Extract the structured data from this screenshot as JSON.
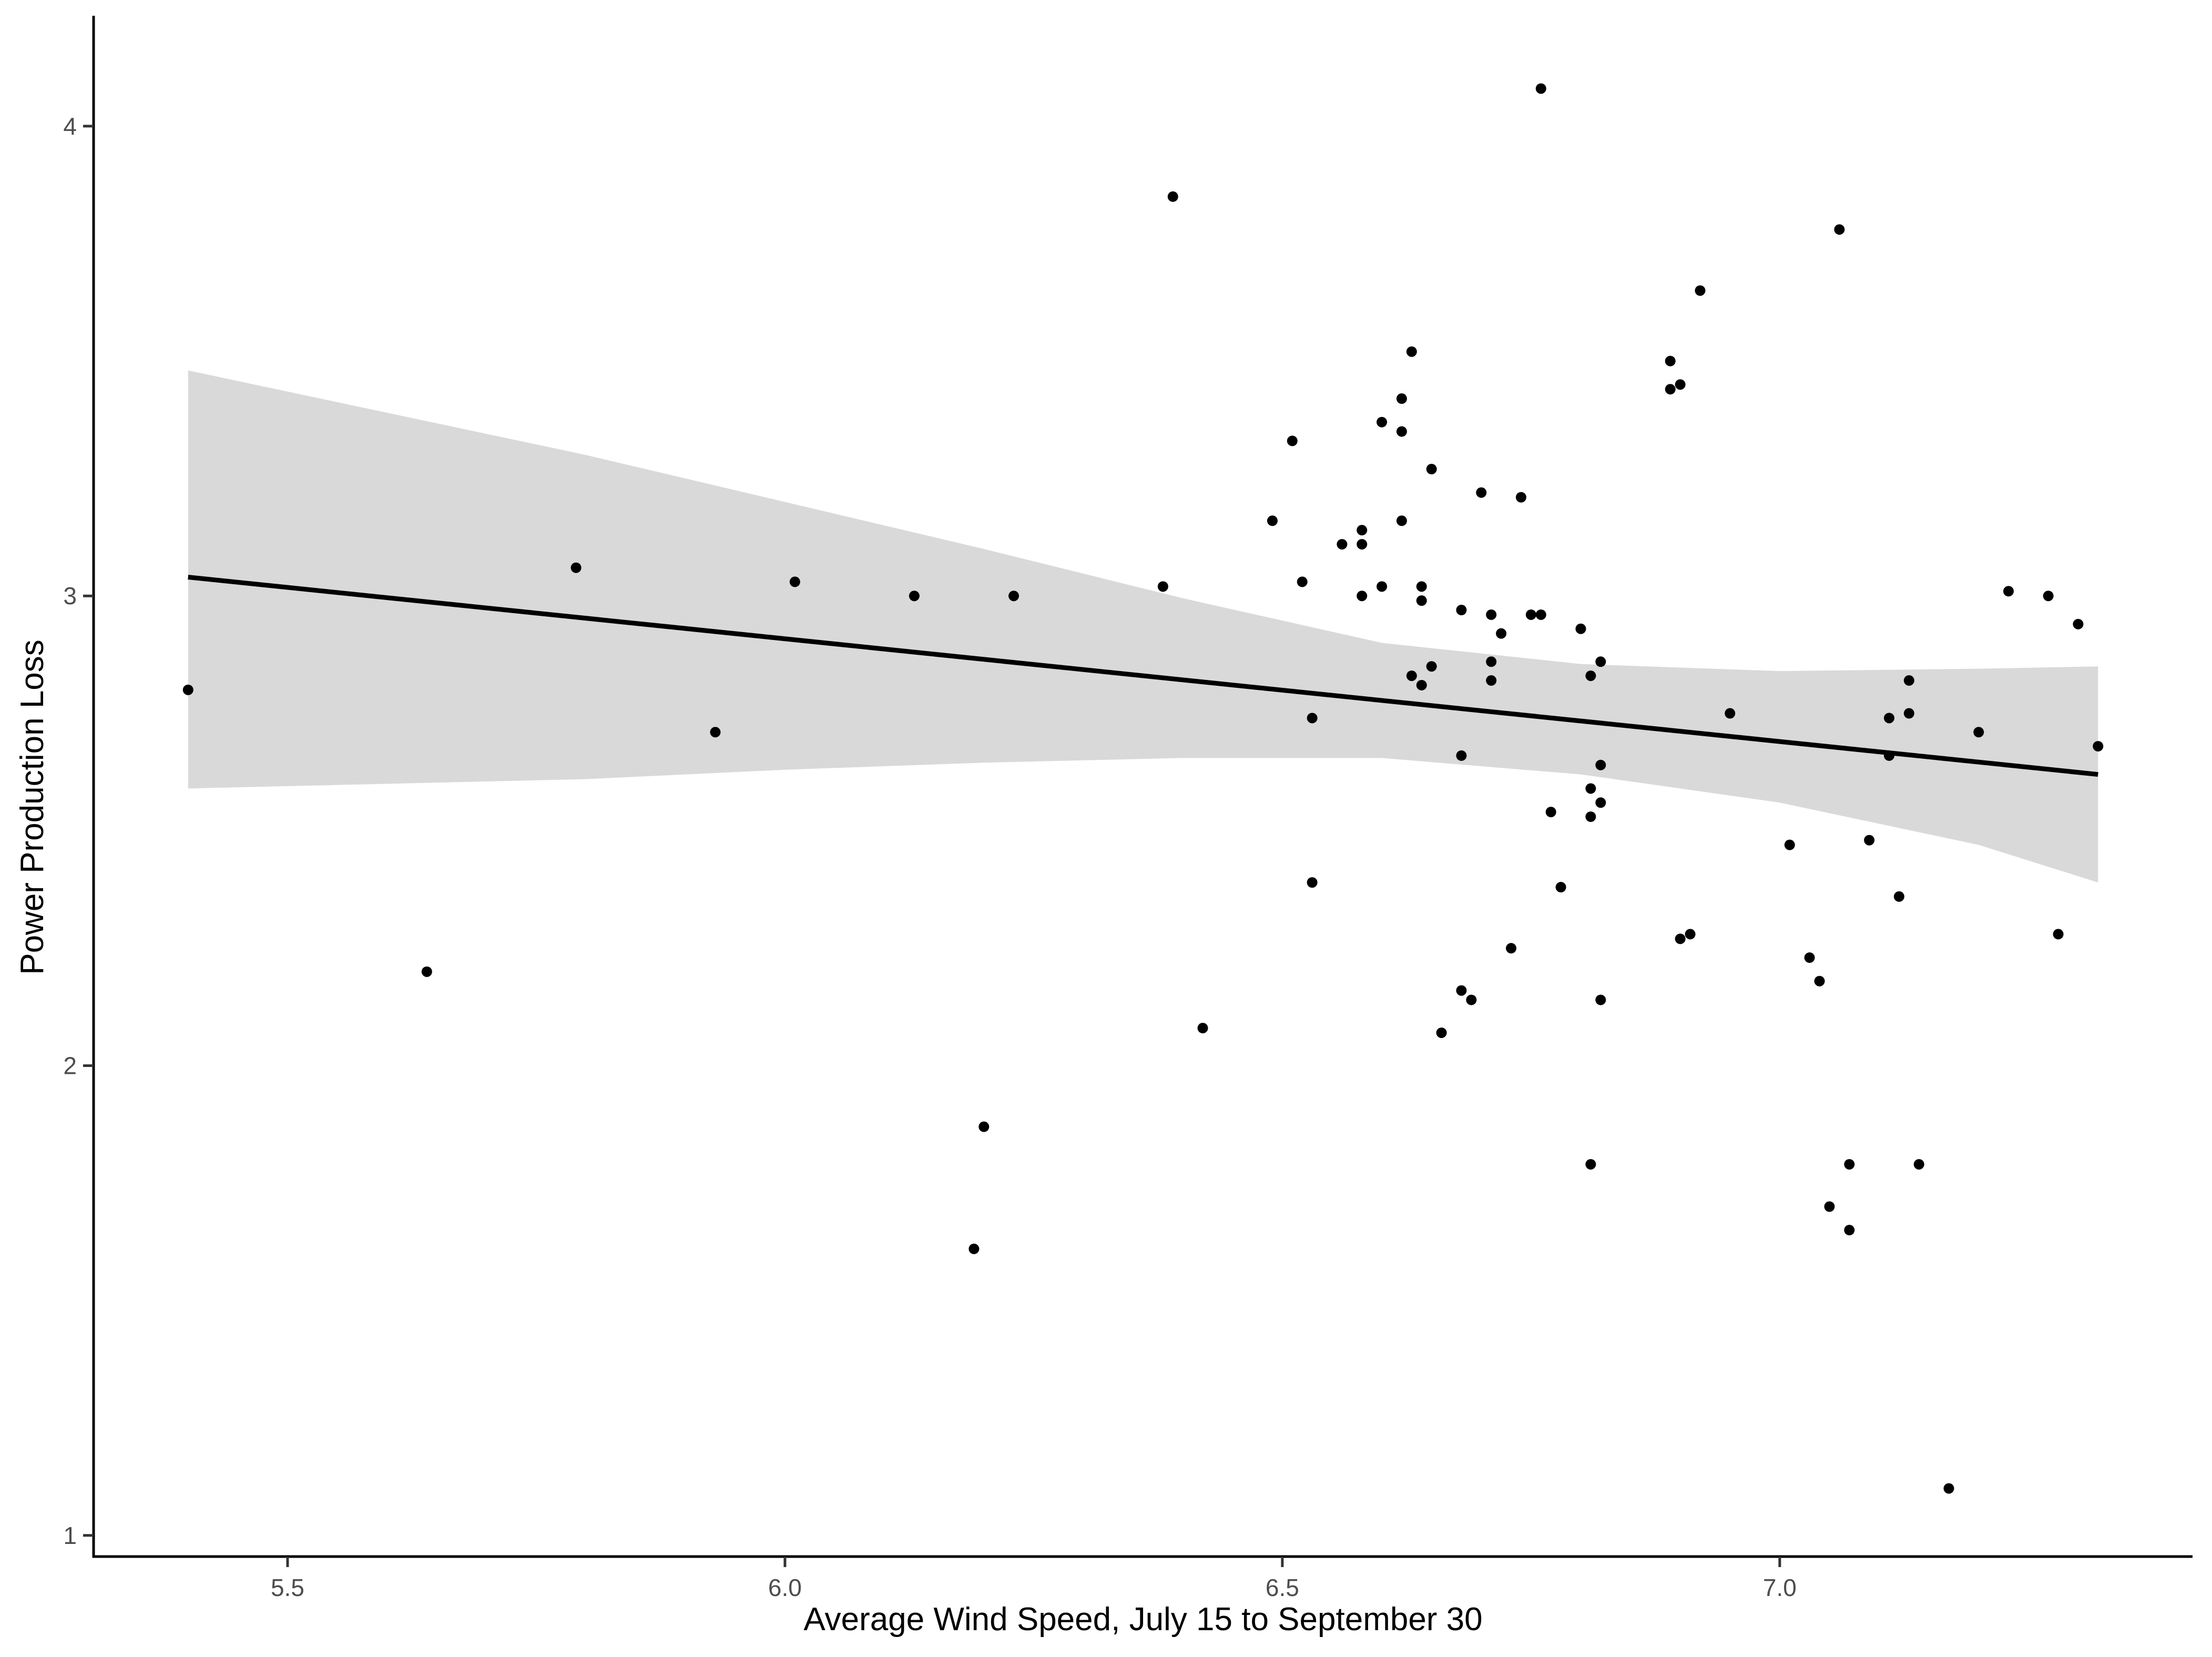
{
  "chart_data": {
    "type": "scatter",
    "title": "",
    "xlabel": "Average Wind Speed, July 15 to September 30",
    "ylabel": "Power Production Loss",
    "xlim": [
      5.305,
      7.415
    ],
    "ylim": [
      0.955,
      4.235
    ],
    "x_ticks": [
      5.5,
      6.0,
      6.5,
      7.0
    ],
    "x_tick_labels": [
      "5.5",
      "6.0",
      "6.5",
      "7.0"
    ],
    "y_ticks": [
      1,
      2,
      3,
      4
    ],
    "y_tick_labels": [
      "1",
      "2",
      "3",
      "4"
    ],
    "grid": false,
    "legend": "none",
    "trend_line": {
      "x": [
        5.4,
        7.32
      ],
      "y": [
        3.04,
        2.62
      ]
    },
    "confidence_band": {
      "x": [
        5.4,
        5.6,
        5.8,
        6.0,
        6.2,
        6.4,
        6.6,
        6.8,
        7.0,
        7.2,
        7.32
      ],
      "lower": [
        2.59,
        2.6,
        2.61,
        2.63,
        2.645,
        2.655,
        2.655,
        2.62,
        2.56,
        2.47,
        2.39
      ],
      "upper": [
        3.48,
        3.39,
        3.3,
        3.2,
        3.1,
        2.995,
        2.9,
        2.855,
        2.84,
        2.845,
        2.85
      ]
    },
    "colors": {
      "points": "#000000",
      "line": "#000000",
      "band": "#d9d9d9",
      "axis": "#000000"
    },
    "points": [
      {
        "x": 5.4,
        "y": 2.8
      },
      {
        "x": 5.64,
        "y": 2.2
      },
      {
        "x": 5.79,
        "y": 3.06
      },
      {
        "x": 5.93,
        "y": 2.71
      },
      {
        "x": 6.01,
        "y": 3.03
      },
      {
        "x": 6.13,
        "y": 3.0
      },
      {
        "x": 6.19,
        "y": 1.61
      },
      {
        "x": 6.2,
        "y": 1.87
      },
      {
        "x": 6.23,
        "y": 3.0
      },
      {
        "x": 6.38,
        "y": 3.02
      },
      {
        "x": 6.39,
        "y": 3.85
      },
      {
        "x": 6.42,
        "y": 2.08
      },
      {
        "x": 6.49,
        "y": 3.16
      },
      {
        "x": 6.51,
        "y": 3.33
      },
      {
        "x": 6.52,
        "y": 3.03
      },
      {
        "x": 6.53,
        "y": 2.74
      },
      {
        "x": 6.53,
        "y": 2.39
      },
      {
        "x": 6.56,
        "y": 3.11
      },
      {
        "x": 6.58,
        "y": 3.14
      },
      {
        "x": 6.58,
        "y": 3.11
      },
      {
        "x": 6.58,
        "y": 3.0
      },
      {
        "x": 6.6,
        "y": 3.37
      },
      {
        "x": 6.6,
        "y": 3.02
      },
      {
        "x": 6.62,
        "y": 3.42
      },
      {
        "x": 6.62,
        "y": 3.35
      },
      {
        "x": 6.62,
        "y": 3.16
      },
      {
        "x": 6.63,
        "y": 3.52
      },
      {
        "x": 6.63,
        "y": 2.83
      },
      {
        "x": 6.64,
        "y": 3.02
      },
      {
        "x": 6.64,
        "y": 2.99
      },
      {
        "x": 6.64,
        "y": 2.81
      },
      {
        "x": 6.65,
        "y": 3.27
      },
      {
        "x": 6.65,
        "y": 2.85
      },
      {
        "x": 6.66,
        "y": 2.07
      },
      {
        "x": 6.68,
        "y": 2.66
      },
      {
        "x": 6.68,
        "y": 2.97
      },
      {
        "x": 6.68,
        "y": 2.16
      },
      {
        "x": 6.69,
        "y": 2.14
      },
      {
        "x": 6.7,
        "y": 3.22
      },
      {
        "x": 6.71,
        "y": 2.86
      },
      {
        "x": 6.71,
        "y": 2.96
      },
      {
        "x": 6.71,
        "y": 2.82
      },
      {
        "x": 6.72,
        "y": 2.92
      },
      {
        "x": 6.73,
        "y": 2.25
      },
      {
        "x": 6.74,
        "y": 3.21
      },
      {
        "x": 6.75,
        "y": 2.96
      },
      {
        "x": 6.76,
        "y": 2.96
      },
      {
        "x": 6.76,
        "y": 4.08
      },
      {
        "x": 6.77,
        "y": 2.54
      },
      {
        "x": 6.78,
        "y": 2.38
      },
      {
        "x": 6.8,
        "y": 2.93
      },
      {
        "x": 6.81,
        "y": 2.59
      },
      {
        "x": 6.81,
        "y": 2.83
      },
      {
        "x": 6.81,
        "y": 2.53
      },
      {
        "x": 6.82,
        "y": 2.64
      },
      {
        "x": 6.82,
        "y": 2.86
      },
      {
        "x": 6.82,
        "y": 2.14
      },
      {
        "x": 6.81,
        "y": 1.79
      },
      {
        "x": 6.82,
        "y": 2.56
      },
      {
        "x": 6.89,
        "y": 3.44
      },
      {
        "x": 6.89,
        "y": 3.5
      },
      {
        "x": 6.9,
        "y": 3.45
      },
      {
        "x": 6.9,
        "y": 2.27
      },
      {
        "x": 6.91,
        "y": 2.28
      },
      {
        "x": 6.92,
        "y": 3.65
      },
      {
        "x": 6.95,
        "y": 2.75
      },
      {
        "x": 7.01,
        "y": 2.47
      },
      {
        "x": 7.03,
        "y": 2.23
      },
      {
        "x": 7.04,
        "y": 2.18
      },
      {
        "x": 7.05,
        "y": 1.7
      },
      {
        "x": 7.06,
        "y": 3.78
      },
      {
        "x": 7.07,
        "y": 1.79
      },
      {
        "x": 7.07,
        "y": 1.65
      },
      {
        "x": 7.09,
        "y": 2.48
      },
      {
        "x": 7.11,
        "y": 2.74
      },
      {
        "x": 7.11,
        "y": 2.66
      },
      {
        "x": 7.12,
        "y": 2.36
      },
      {
        "x": 7.13,
        "y": 2.82
      },
      {
        "x": 7.13,
        "y": 2.75
      },
      {
        "x": 7.14,
        "y": 1.79
      },
      {
        "x": 7.17,
        "y": 1.1
      },
      {
        "x": 7.2,
        "y": 2.71
      },
      {
        "x": 7.23,
        "y": 3.01
      },
      {
        "x": 7.27,
        "y": 3.0
      },
      {
        "x": 7.28,
        "y": 2.28
      },
      {
        "x": 7.3,
        "y": 2.94
      },
      {
        "x": 7.32,
        "y": 2.68
      }
    ]
  }
}
